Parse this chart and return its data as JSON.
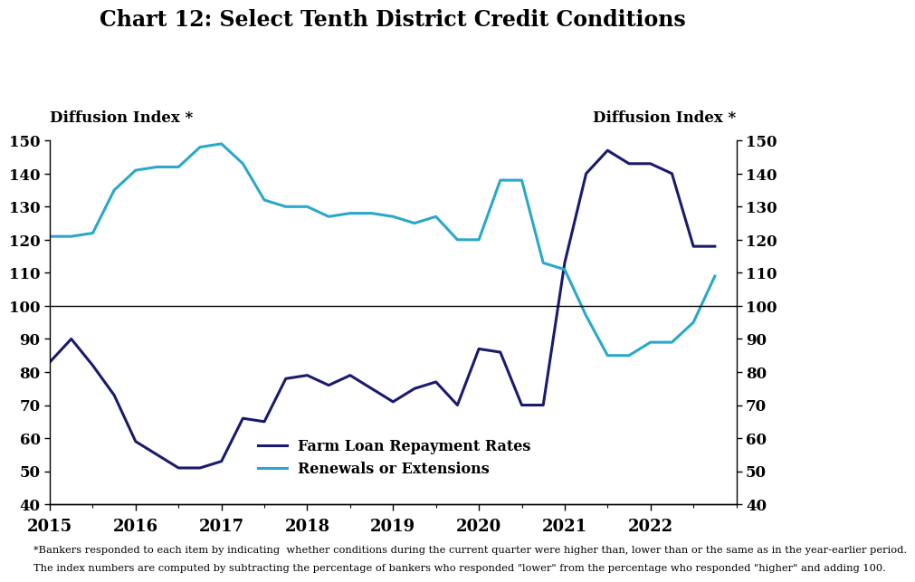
{
  "title": "Chart 12: Select Tenth District Credit Conditions",
  "ylabel_left": "Diffusion Index *",
  "ylabel_right": "Diffusion Index *",
  "ylim": [
    40,
    150
  ],
  "yticks": [
    40,
    50,
    60,
    70,
    80,
    90,
    100,
    110,
    120,
    130,
    140,
    150
  ],
  "xlim_start": 2015.0,
  "xlim_end": 2023.0,
  "xticks": [
    2015,
    2016,
    2017,
    2018,
    2019,
    2020,
    2021,
    2022
  ],
  "footnote_line1": "*Bankers responded to each item by indicating  whether conditions during the current quarter were higher than, lower than or the same as in the year-earlier period.",
  "footnote_line2": "The index numbers are computed by subtracting the percentage of bankers who responded \"lower\" from the percentage who responded \"higher\" and adding 100.",
  "farm_loan_color": "#1a1a6e",
  "renewals_color": "#29a8c9",
  "legend_farm": "Farm Loan Repayment Rates",
  "legend_renewals": "Renewals or Extensions",
  "farm_loan_x": [
    2015.0,
    2015.25,
    2015.5,
    2015.75,
    2016.0,
    2016.25,
    2016.5,
    2016.75,
    2017.0,
    2017.25,
    2017.5,
    2017.75,
    2018.0,
    2018.25,
    2018.5,
    2018.75,
    2019.0,
    2019.25,
    2019.5,
    2019.75,
    2020.0,
    2020.25,
    2020.5,
    2020.75,
    2021.0,
    2021.25,
    2021.5,
    2021.75,
    2022.0,
    2022.25,
    2022.5,
    2022.75
  ],
  "farm_loan_y": [
    83,
    90,
    82,
    73,
    59,
    55,
    51,
    51,
    53,
    66,
    65,
    78,
    79,
    76,
    79,
    75,
    71,
    75,
    77,
    70,
    87,
    86,
    70,
    70,
    113,
    140,
    147,
    143,
    143,
    140,
    118,
    118
  ],
  "renewals_x": [
    2015.0,
    2015.25,
    2015.5,
    2015.75,
    2016.0,
    2016.25,
    2016.5,
    2016.75,
    2017.0,
    2017.25,
    2017.5,
    2017.75,
    2018.0,
    2018.25,
    2018.5,
    2018.75,
    2019.0,
    2019.25,
    2019.5,
    2019.75,
    2020.0,
    2020.25,
    2020.5,
    2020.75,
    2021.0,
    2021.25,
    2021.5,
    2021.75,
    2022.0,
    2022.25,
    2022.5,
    2022.75
  ],
  "renewals_y": [
    121,
    121,
    122,
    135,
    141,
    142,
    142,
    148,
    149,
    143,
    132,
    130,
    130,
    127,
    128,
    128,
    127,
    125,
    127,
    120,
    120,
    138,
    138,
    113,
    111,
    97,
    85,
    85,
    89,
    89,
    95,
    109
  ]
}
